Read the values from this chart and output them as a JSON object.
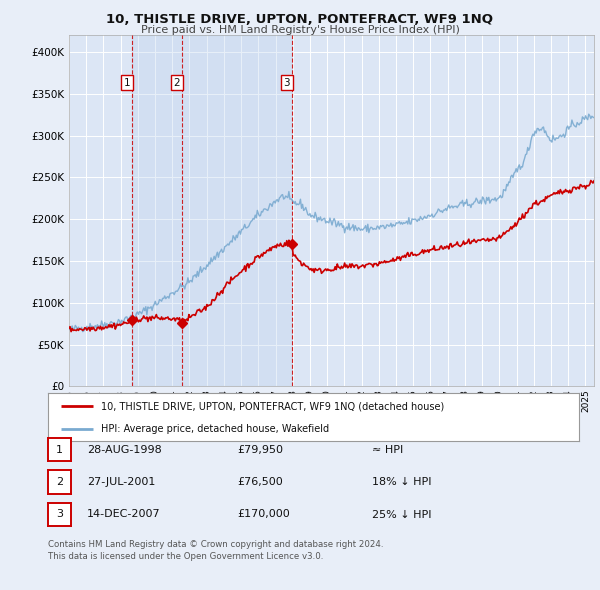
{
  "title": "10, THISTLE DRIVE, UPTON, PONTEFRACT, WF9 1NQ",
  "subtitle": "Price paid vs. HM Land Registry's House Price Index (HPI)",
  "xlim": [
    1995.0,
    2025.5
  ],
  "ylim": [
    0,
    420000
  ],
  "yticks": [
    0,
    50000,
    100000,
    150000,
    200000,
    250000,
    300000,
    350000,
    400000
  ],
  "ytick_labels": [
    "£0",
    "£50K",
    "£100K",
    "£150K",
    "£200K",
    "£250K",
    "£300K",
    "£350K",
    "£400K"
  ],
  "background_color": "#e8eef8",
  "plot_bg_color": "#dce6f5",
  "grid_color": "#ffffff",
  "sale_color": "#cc0000",
  "hpi_color": "#7aaad0",
  "transaction_lines_color": "#cc0000",
  "sales": [
    {
      "date_num": 1998.66,
      "price": 79950,
      "label": "1"
    },
    {
      "date_num": 2001.57,
      "price": 76500,
      "label": "2"
    },
    {
      "date_num": 2007.96,
      "price": 170000,
      "label": "3"
    }
  ],
  "shaded_region": {
    "x_start": 1998.66,
    "x_end": 2007.96
  },
  "legend_sale_label": "10, THISTLE DRIVE, UPTON, PONTEFRACT, WF9 1NQ (detached house)",
  "legend_hpi_label": "HPI: Average price, detached house, Wakefield",
  "table_rows": [
    {
      "num": "1",
      "date": "28-AUG-1998",
      "price": "£79,950",
      "hpi_rel": "≈ HPI"
    },
    {
      "num": "2",
      "date": "27-JUL-2001",
      "price": "£76,500",
      "hpi_rel": "18% ↓ HPI"
    },
    {
      "num": "3",
      "date": "14-DEC-2007",
      "price": "£170,000",
      "hpi_rel": "25% ↓ HPI"
    }
  ],
  "footnote": "Contains HM Land Registry data © Crown copyright and database right 2024.\nThis data is licensed under the Open Government Licence v3.0."
}
